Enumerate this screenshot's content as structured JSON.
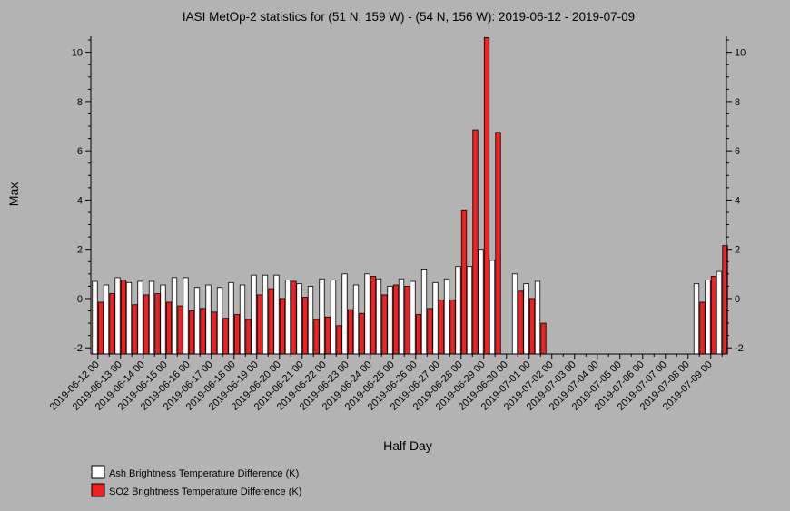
{
  "chart_data": {
    "type": "bar",
    "title": "IASI MetOp-2 statistics for (51 N, 159 W) - (54 N, 156 W): 2019-06-12 - 2019-07-09",
    "xlabel": "Half Day",
    "ylabel": "Max",
    "ylim": [
      -2.25,
      10.65
    ],
    "yticks": [
      -2,
      0,
      2,
      4,
      6,
      8,
      10
    ],
    "categories": [
      "2019-06-12 00",
      "",
      "2019-06-13 00",
      "",
      "2019-06-14 00",
      "",
      "2019-06-15 00",
      "",
      "2019-06-16 00",
      "",
      "2019-06-17 00",
      "",
      "2019-06-18 00",
      "",
      "2019-06-19 00",
      "",
      "2019-06-20 00",
      "",
      "2019-06-21 00",
      "",
      "2019-06-22 00",
      "",
      "2019-06-23 00",
      "",
      "2019-06-24 00",
      "",
      "2019-06-25 00",
      "",
      "2019-06-26 00",
      "",
      "2019-06-27 00",
      "",
      "2019-06-28 00",
      "",
      "2019-06-29 00",
      "",
      "2019-06-30 00",
      "",
      "2019-07-01 00",
      "",
      "2019-07-02 00",
      "",
      "2019-07-03 00",
      "",
      "2019-07-04 00",
      "",
      "2019-07-05 00",
      "",
      "2019-07-06 00",
      "",
      "2019-07-07 00",
      "",
      "2019-07-08 00",
      "",
      "2019-07-09 00",
      ""
    ],
    "series": [
      {
        "name": "Ash Brightness Temperature Difference (K)",
        "color": "#ffffff",
        "values": [
          0.7,
          0.55,
          0.85,
          0.65,
          0.7,
          0.7,
          0.55,
          0.85,
          0.85,
          0.45,
          0.55,
          0.45,
          0.65,
          0.55,
          0.95,
          0.95,
          0.95,
          0.75,
          0.6,
          0.5,
          0.8,
          0.75,
          1.0,
          0.55,
          1.0,
          0.8,
          0.5,
          0.8,
          0.7,
          1.2,
          0.65,
          0.8,
          1.3,
          1.3,
          2.0,
          1.55,
          null,
          1.0,
          0.6,
          0.7,
          null,
          null,
          null,
          null,
          null,
          null,
          null,
          null,
          null,
          null,
          null,
          null,
          null,
          0.6,
          0.75,
          1.1
        ]
      },
      {
        "name": "SO2 Brightness Temperature Difference (K)",
        "color": "#ee2222",
        "values": [
          -0.15,
          0.2,
          0.75,
          -0.25,
          0.15,
          0.2,
          -0.15,
          -0.3,
          -0.5,
          -0.4,
          -0.55,
          -0.8,
          -0.65,
          -0.85,
          0.15,
          0.4,
          0.0,
          0.7,
          0.05,
          -0.85,
          -0.75,
          -1.1,
          -0.45,
          -0.6,
          0.9,
          0.15,
          0.55,
          0.5,
          -0.65,
          -0.4,
          -0.05,
          -0.05,
          3.6,
          6.85,
          10.6,
          6.75,
          null,
          0.3,
          0.0,
          -1.0,
          null,
          null,
          null,
          null,
          null,
          null,
          null,
          null,
          null,
          null,
          null,
          null,
          null,
          -0.15,
          0.9,
          2.15
        ]
      }
    ],
    "legend_position": "bottom-left",
    "grid": false
  }
}
